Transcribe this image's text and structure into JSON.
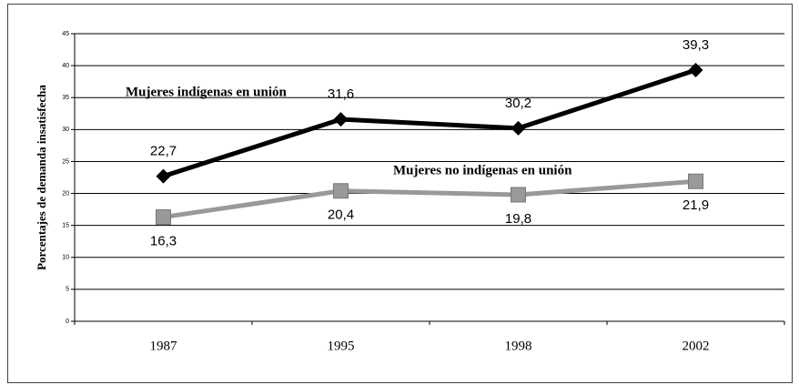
{
  "chart_data": {
    "type": "line",
    "y_label": "Porcentajes de demanda insatisfecha",
    "categories": [
      "1987",
      "1995",
      "1998",
      "2002"
    ],
    "series": [
      {
        "name": "Mujeres indígenas en unión",
        "color": "#000000",
        "marker": "diamond",
        "values": [
          22.7,
          31.6,
          30.2,
          39.3
        ],
        "value_labels": [
          "22,7",
          "31,6",
          "30,2",
          "39,3"
        ]
      },
      {
        "name": "Mujeres no indígenas en unión",
        "color": "#999999",
        "marker": "square",
        "values": [
          16.3,
          20.4,
          19.8,
          21.9
        ],
        "value_labels": [
          "16,3",
          "20,4",
          "19,8",
          "21,9"
        ]
      }
    ],
    "ylim": [
      0,
      45
    ],
    "yticks": [
      0,
      5,
      10,
      15,
      20,
      25,
      30,
      35,
      40,
      45
    ],
    "grid": true
  }
}
